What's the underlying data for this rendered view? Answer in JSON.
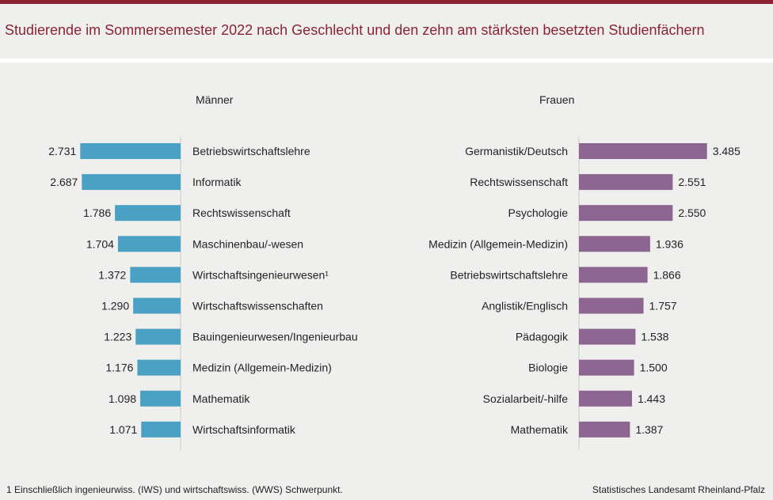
{
  "title": "Studierende im Sommersemester 2022 nach Geschlecht und den zehn am stärksten besetzten Studienfächern",
  "footnote": "1 Einschließlich ingenieurwiss. (IWS) und wirtschaftswiss. (WWS) Schwerpunkt.",
  "source": "Statistisches Landesamt Rheinland-Pfalz",
  "colors": {
    "maenner": "#4ba1c4",
    "frauen": "#8c6591",
    "accent": "#8b2335"
  },
  "chart_data": [
    {
      "type": "bar",
      "title": "Männer",
      "categories": [
        "Betriebswirtschaftslehre",
        "Informatik",
        "Rechtswissenschaft",
        "Maschinenbau/-wesen",
        "Wirtschaftsingenieurwesen¹",
        "Wirtschaftswissenschaften",
        "Bauingenieurwesen/Ingenieurbau",
        "Medizin (Allgemein-Medizin)",
        "Mathematik",
        "Wirtschaftsinformatik"
      ],
      "values": [
        2731,
        2687,
        1786,
        1704,
        1372,
        1290,
        1223,
        1176,
        1098,
        1071
      ],
      "value_labels": [
        "2.731",
        "2.687",
        "1.786",
        "1.704",
        "1.372",
        "1.290",
        "1.223",
        "1.176",
        "1.098",
        "1.071"
      ],
      "orientation": "horizontal",
      "direction": "right-to-left"
    },
    {
      "type": "bar",
      "title": "Frauen",
      "categories": [
        "Germanistik/Deutsch",
        "Rechtswissenschaft",
        "Psychologie",
        "Medizin (Allgemein-Medizin)",
        "Betriebswirtschaftslehre",
        "Anglistik/Englisch",
        "Pädagogik",
        "Biologie",
        "Sozialarbeit/-hilfe",
        "Mathematik"
      ],
      "values": [
        3485,
        2551,
        2550,
        1936,
        1866,
        1757,
        1538,
        1500,
        1443,
        1387
      ],
      "value_labels": [
        "3.485",
        "2.551",
        "2.550",
        "1.936",
        "1.866",
        "1.757",
        "1.538",
        "1.500",
        "1.443",
        "1.387"
      ],
      "orientation": "horizontal",
      "direction": "left-to-right"
    }
  ]
}
